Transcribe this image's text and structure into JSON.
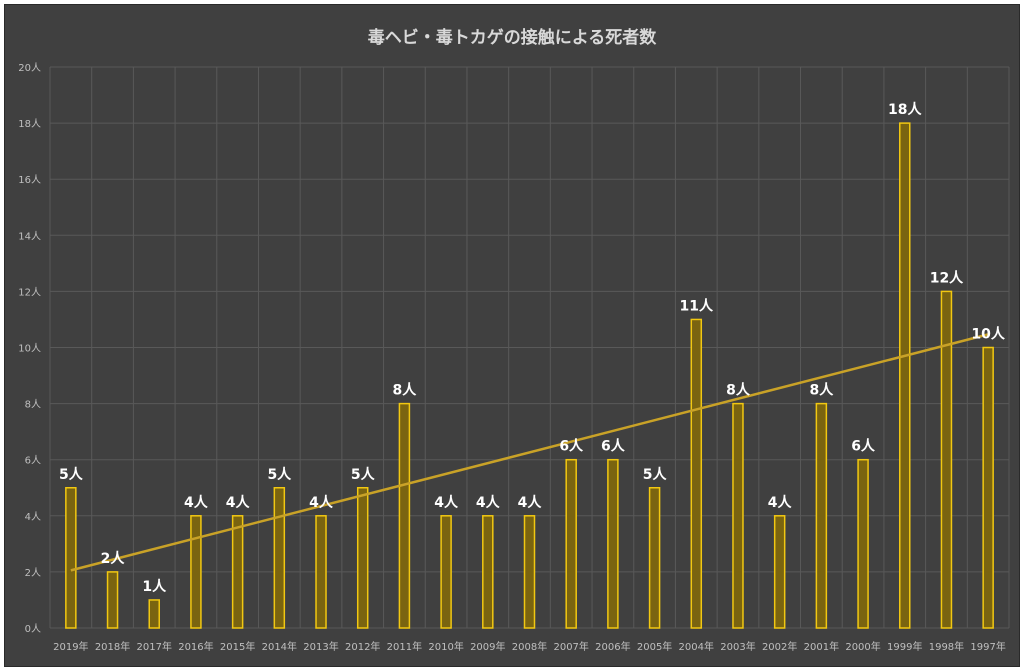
{
  "chart_data": {
    "type": "bar",
    "title": "毒ヘビ・毒トカゲの接触による死者数",
    "xlabel": "",
    "ylabel": "",
    "categories": [
      "2019年",
      "2018年",
      "2017年",
      "2016年",
      "2015年",
      "2014年",
      "2013年",
      "2012年",
      "2011年",
      "2010年",
      "2009年",
      "2008年",
      "2007年",
      "2006年",
      "2005年",
      "2004年",
      "2003年",
      "2002年",
      "2001年",
      "2000年",
      "1999年",
      "1998年",
      "1997年"
    ],
    "values": [
      5,
      2,
      1,
      4,
      4,
      5,
      4,
      5,
      8,
      4,
      4,
      4,
      6,
      6,
      5,
      11,
      8,
      4,
      8,
      6,
      18,
      12,
      10
    ],
    "data_labels": [
      "5人",
      "2人",
      "1人",
      "4人",
      "4人",
      "5人",
      "4人",
      "5人",
      "8人",
      "4人",
      "4人",
      "4人",
      "6人",
      "6人",
      "5人",
      "11人",
      "8人",
      "4人",
      "8人",
      "6人",
      "18人",
      "12人",
      "10人"
    ],
    "ylim": [
      0,
      20
    ],
    "yticks": [
      0,
      2,
      4,
      6,
      8,
      10,
      12,
      14,
      16,
      18,
      20
    ],
    "ytick_labels": [
      "0人",
      "2人",
      "4人",
      "6人",
      "8人",
      "10人",
      "12人",
      "14人",
      "16人",
      "18人",
      "20人"
    ],
    "trendline": "linear",
    "grid": true,
    "legend": "none",
    "colors": {
      "background": "#404040",
      "bar_fill": "#7a6410",
      "bar_stroke": "#f2c811",
      "trendline": "#c9a227",
      "grid": "#595959",
      "text": "#ffffff"
    }
  }
}
